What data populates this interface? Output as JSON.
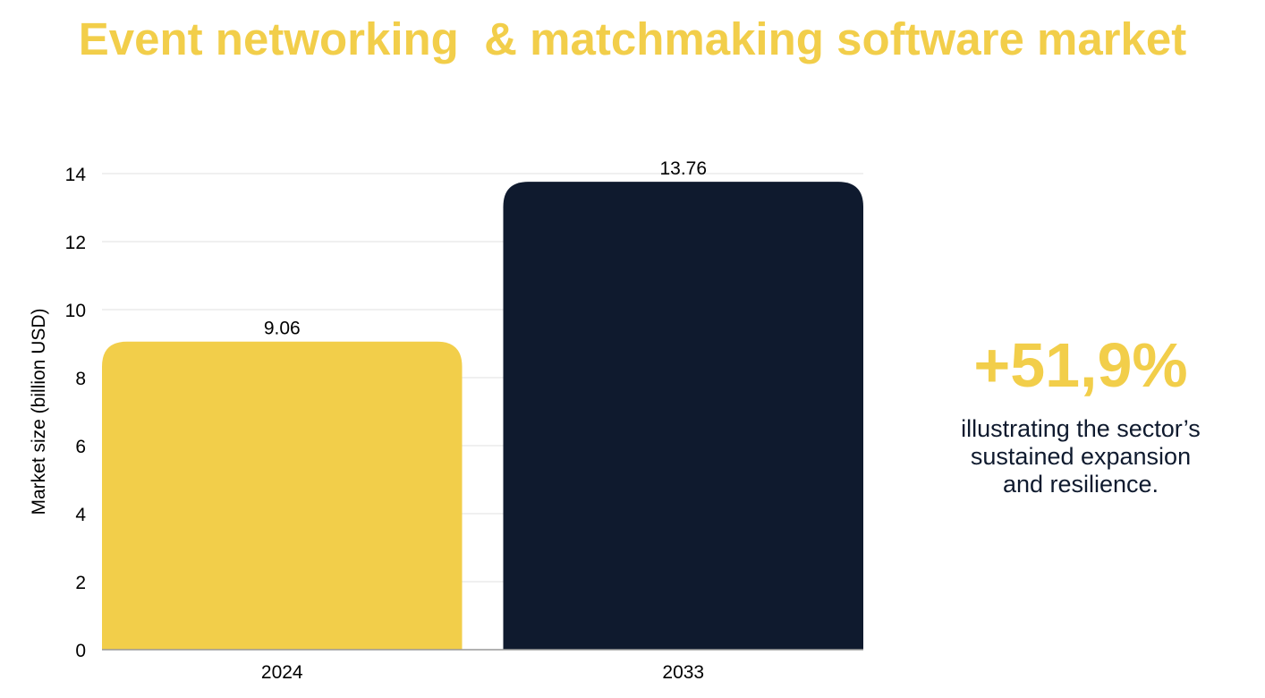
{
  "title": "Event networking  & matchmaking software market",
  "callout": {
    "value": "+51,9%",
    "caption_lines": [
      "illustrating the sector’s",
      "sustained expansion",
      "and resilience."
    ]
  },
  "colors": {
    "accent": "#F2CE4A",
    "dark": "#0F1A2E",
    "grid": "#E0E0E0"
  },
  "chart_data": {
    "type": "bar",
    "title": "Event networking  & matchmaking software market",
    "categories": [
      "2024",
      "2033"
    ],
    "values": [
      9.06,
      13.76
    ],
    "value_labels": [
      "9.06",
      "13.76"
    ],
    "bar_colors": [
      "#F2CE4A",
      "#0F1A2E"
    ],
    "xlabel": "",
    "ylabel": "Market size (billion USD)",
    "ylim": [
      0,
      14
    ],
    "yticks": [
      0,
      2,
      4,
      6,
      8,
      10,
      12,
      14
    ],
    "grid": true
  }
}
